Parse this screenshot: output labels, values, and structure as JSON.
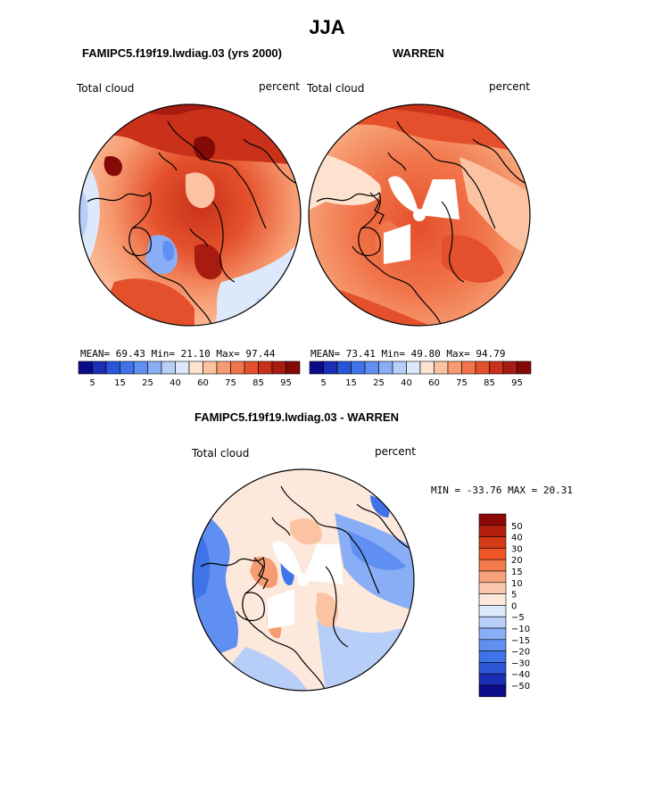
{
  "title": "JJA",
  "panels": [
    {
      "title": "FAMIPC5.f19f19.lwdiag.03 (yrs 2000)",
      "variable": "Total cloud",
      "units": "percent",
      "stats_line": "MEAN=  69.43  Min=  21.10  Max=  97.44",
      "mean": 69.43,
      "min": 21.1,
      "max": 97.44
    },
    {
      "title": "WARREN",
      "variable": "Total cloud",
      "units": "percent",
      "stats_line": "MEAN=  73.41  Min=  49.80  Max=  94.79",
      "mean": 73.41,
      "min": 49.8,
      "max": 94.79
    },
    {
      "title": "FAMIPC5.f19f19.lwdiag.03 - WARREN",
      "variable": "Total cloud",
      "units": "percent",
      "stats_line": "MIN = -33.76 MAX =  20.31",
      "min": -33.76,
      "max": 20.31
    }
  ],
  "abs_colorbar": {
    "colors": [
      "#0b0b8a",
      "#1a2fb5",
      "#2a55d6",
      "#3f73e8",
      "#5f8ff0",
      "#8aaef5",
      "#b7cef8",
      "#dde8fb",
      "#fde3cf",
      "#fbc3a1",
      "#f79c72",
      "#f1744a",
      "#e4502b",
      "#c9311a",
      "#a81b10",
      "#850a07"
    ],
    "tick_labels": [
      "5",
      "15",
      "25",
      "40",
      "60",
      "75",
      "85",
      "95"
    ]
  },
  "diff_colorbar": {
    "colors": [
      "#8b0a07",
      "#b3200f",
      "#d43a18",
      "#f05528",
      "#f47b4c",
      "#f8a27c",
      "#fbc8ae",
      "#fde8dc",
      "#dde8fb",
      "#b7cef8",
      "#8aaef5",
      "#5f8ff0",
      "#3f73e8",
      "#2a55d6",
      "#1a2fb5",
      "#0b0b8a"
    ],
    "tick_labels": [
      "50",
      "40",
      "30",
      "20",
      "15",
      "10",
      "5",
      "0",
      "-5",
      "-10",
      "-15",
      "-20",
      "-30",
      "-40",
      "-50"
    ]
  }
}
